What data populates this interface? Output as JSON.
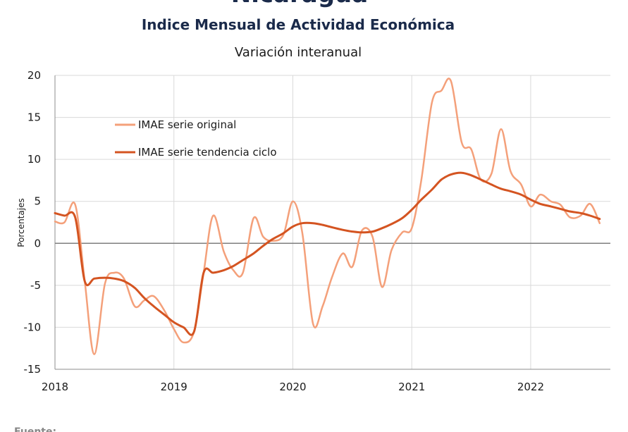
{
  "chart_data": {
    "type": "line",
    "title": "Nicaragua",
    "subtitle": "Indice Mensual de  Actividad Económica",
    "subtitle2": "Variación interanual",
    "ylabel": "Porcentajes",
    "xlabel": "",
    "ylim": [
      -15,
      20
    ],
    "yticks": [
      -15,
      -10,
      -5,
      0,
      5,
      10,
      15,
      20
    ],
    "xticks": [
      {
        "label": "2018",
        "x": 2018.0
      },
      {
        "label": "2019",
        "x": 2019.0
      },
      {
        "label": "2020",
        "x": 2020.0
      },
      {
        "label": "2021",
        "x": 2021.0
      },
      {
        "label": "2022",
        "x": 2022.0
      }
    ],
    "grid": true,
    "legend_position": "top-left",
    "footer": "Fuente:",
    "series": [
      {
        "name": "IMAE serie original",
        "color": "#F4A07A",
        "points": [
          [
            2018.0,
            2.6
          ],
          [
            2018.08,
            2.5
          ],
          [
            2018.17,
            4.6
          ],
          [
            2018.25,
            -4.5
          ],
          [
            2018.33,
            -13.2
          ],
          [
            2018.42,
            -4.8
          ],
          [
            2018.5,
            -3.5
          ],
          [
            2018.58,
            -4.2
          ],
          [
            2018.67,
            -7.5
          ],
          [
            2018.75,
            -6.8
          ],
          [
            2018.83,
            -6.3
          ],
          [
            2018.92,
            -8.0
          ],
          [
            2019.0,
            -10.2
          ],
          [
            2019.08,
            -11.8
          ],
          [
            2019.17,
            -10.5
          ],
          [
            2019.25,
            -3.5
          ],
          [
            2019.33,
            3.3
          ],
          [
            2019.42,
            -1.0
          ],
          [
            2019.5,
            -3.2
          ],
          [
            2019.58,
            -3.5
          ],
          [
            2019.67,
            3.0
          ],
          [
            2019.75,
            0.8
          ],
          [
            2019.83,
            0.3
          ],
          [
            2019.92,
            1.0
          ],
          [
            2020.0,
            5.0
          ],
          [
            2020.08,
            1.2
          ],
          [
            2020.17,
            -9.6
          ],
          [
            2020.25,
            -7.5
          ],
          [
            2020.33,
            -4.0
          ],
          [
            2020.42,
            -1.2
          ],
          [
            2020.5,
            -2.8
          ],
          [
            2020.58,
            1.5
          ],
          [
            2020.67,
            0.8
          ],
          [
            2020.75,
            -5.2
          ],
          [
            2020.83,
            -0.8
          ],
          [
            2020.92,
            1.3
          ],
          [
            2021.0,
            1.8
          ],
          [
            2021.08,
            7.5
          ],
          [
            2021.17,
            16.8
          ],
          [
            2021.25,
            18.2
          ],
          [
            2021.33,
            19.3
          ],
          [
            2021.42,
            12.0
          ],
          [
            2021.5,
            11.2
          ],
          [
            2021.58,
            7.6
          ],
          [
            2021.67,
            8.3
          ],
          [
            2021.75,
            13.6
          ],
          [
            2021.83,
            8.6
          ],
          [
            2021.92,
            7.0
          ],
          [
            2022.0,
            4.4
          ],
          [
            2022.08,
            5.8
          ],
          [
            2022.17,
            5.0
          ],
          [
            2022.25,
            4.6
          ],
          [
            2022.33,
            3.1
          ],
          [
            2022.42,
            3.3
          ],
          [
            2022.5,
            4.7
          ],
          [
            2022.58,
            2.4
          ]
        ]
      },
      {
        "name": "IMAE serie  tendencia ciclo",
        "color": "#D45421",
        "points": [
          [
            2018.0,
            3.6
          ],
          [
            2018.08,
            3.3
          ],
          [
            2018.17,
            3.1
          ],
          [
            2018.25,
            -4.5
          ],
          [
            2018.33,
            -4.2
          ],
          [
            2018.42,
            -4.1
          ],
          [
            2018.5,
            -4.2
          ],
          [
            2018.58,
            -4.5
          ],
          [
            2018.67,
            -5.3
          ],
          [
            2018.75,
            -6.5
          ],
          [
            2018.83,
            -7.5
          ],
          [
            2018.92,
            -8.5
          ],
          [
            2019.0,
            -9.4
          ],
          [
            2019.08,
            -10.0
          ],
          [
            2019.17,
            -10.5
          ],
          [
            2019.25,
            -3.5
          ],
          [
            2019.33,
            -3.5
          ],
          [
            2019.42,
            -3.2
          ],
          [
            2019.5,
            -2.7
          ],
          [
            2019.58,
            -2.0
          ],
          [
            2019.67,
            -1.2
          ],
          [
            2019.75,
            -0.3
          ],
          [
            2019.83,
            0.5
          ],
          [
            2019.92,
            1.2
          ],
          [
            2020.0,
            2.0
          ],
          [
            2020.08,
            2.4
          ],
          [
            2020.17,
            2.4
          ],
          [
            2020.25,
            2.2
          ],
          [
            2020.33,
            1.9
          ],
          [
            2020.42,
            1.6
          ],
          [
            2020.5,
            1.4
          ],
          [
            2020.58,
            1.3
          ],
          [
            2020.67,
            1.4
          ],
          [
            2020.75,
            1.8
          ],
          [
            2020.83,
            2.3
          ],
          [
            2020.92,
            3.0
          ],
          [
            2021.0,
            4.0
          ],
          [
            2021.08,
            5.2
          ],
          [
            2021.17,
            6.4
          ],
          [
            2021.25,
            7.6
          ],
          [
            2021.33,
            8.2
          ],
          [
            2021.42,
            8.4
          ],
          [
            2021.5,
            8.1
          ],
          [
            2021.58,
            7.6
          ],
          [
            2021.67,
            7.0
          ],
          [
            2021.75,
            6.5
          ],
          [
            2021.83,
            6.2
          ],
          [
            2021.92,
            5.8
          ],
          [
            2022.0,
            5.2
          ],
          [
            2022.08,
            4.7
          ],
          [
            2022.17,
            4.4
          ],
          [
            2022.25,
            4.1
          ],
          [
            2022.33,
            3.8
          ],
          [
            2022.42,
            3.6
          ],
          [
            2022.5,
            3.3
          ],
          [
            2022.58,
            2.9
          ]
        ]
      }
    ]
  }
}
